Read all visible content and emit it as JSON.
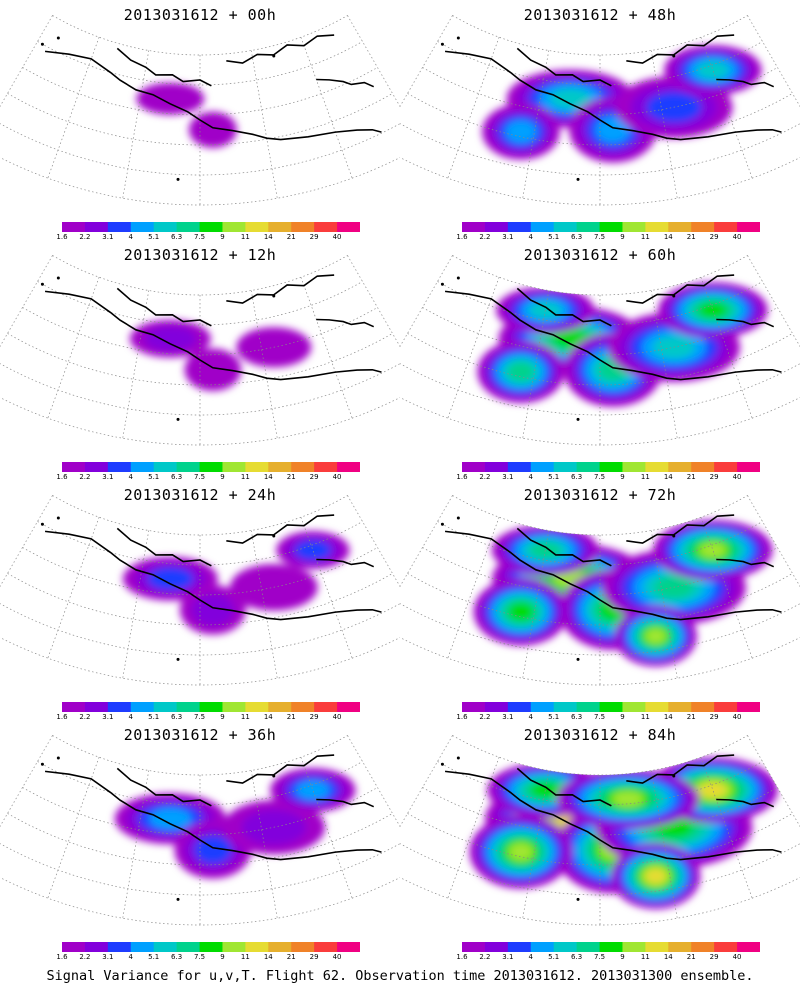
{
  "panels": [
    {
      "title": "2013031612 + 00h",
      "lead": "00h",
      "intensity": 0.0
    },
    {
      "title": "2013031612 + 48h",
      "lead": "48h",
      "intensity": 0.55
    },
    {
      "title": "2013031612 + 12h",
      "lead": "12h",
      "intensity": 0.12
    },
    {
      "title": "2013031612 + 60h",
      "lead": "60h",
      "intensity": 0.7
    },
    {
      "title": "2013031612 + 24h",
      "lead": "24h",
      "intensity": 0.25
    },
    {
      "title": "2013031612 + 72h",
      "lead": "72h",
      "intensity": 0.82
    },
    {
      "title": "2013031612 + 36h",
      "lead": "36h",
      "intensity": 0.4
    },
    {
      "title": "2013031612 + 84h",
      "lead": "84h",
      "intensity": 0.95
    }
  ],
  "colorbar": {
    "labels": [
      "1.6",
      "2.2",
      "3.1",
      "4",
      "5.1",
      "6.3",
      "7.5",
      "9",
      "11",
      "14",
      "21",
      "29",
      "40"
    ],
    "colors": [
      "#a000c8",
      "#8200dc",
      "#1e3cff",
      "#00a0ff",
      "#00c8c8",
      "#00d28c",
      "#00dc00",
      "#a0e632",
      "#e6dc32",
      "#e6af2d",
      "#f08228",
      "#fa3c3c",
      "#f00082"
    ]
  },
  "caption": "Signal Variance for u,v,T. Flight 62. Observation time 2013031612. 2013031300 ensemble."
}
